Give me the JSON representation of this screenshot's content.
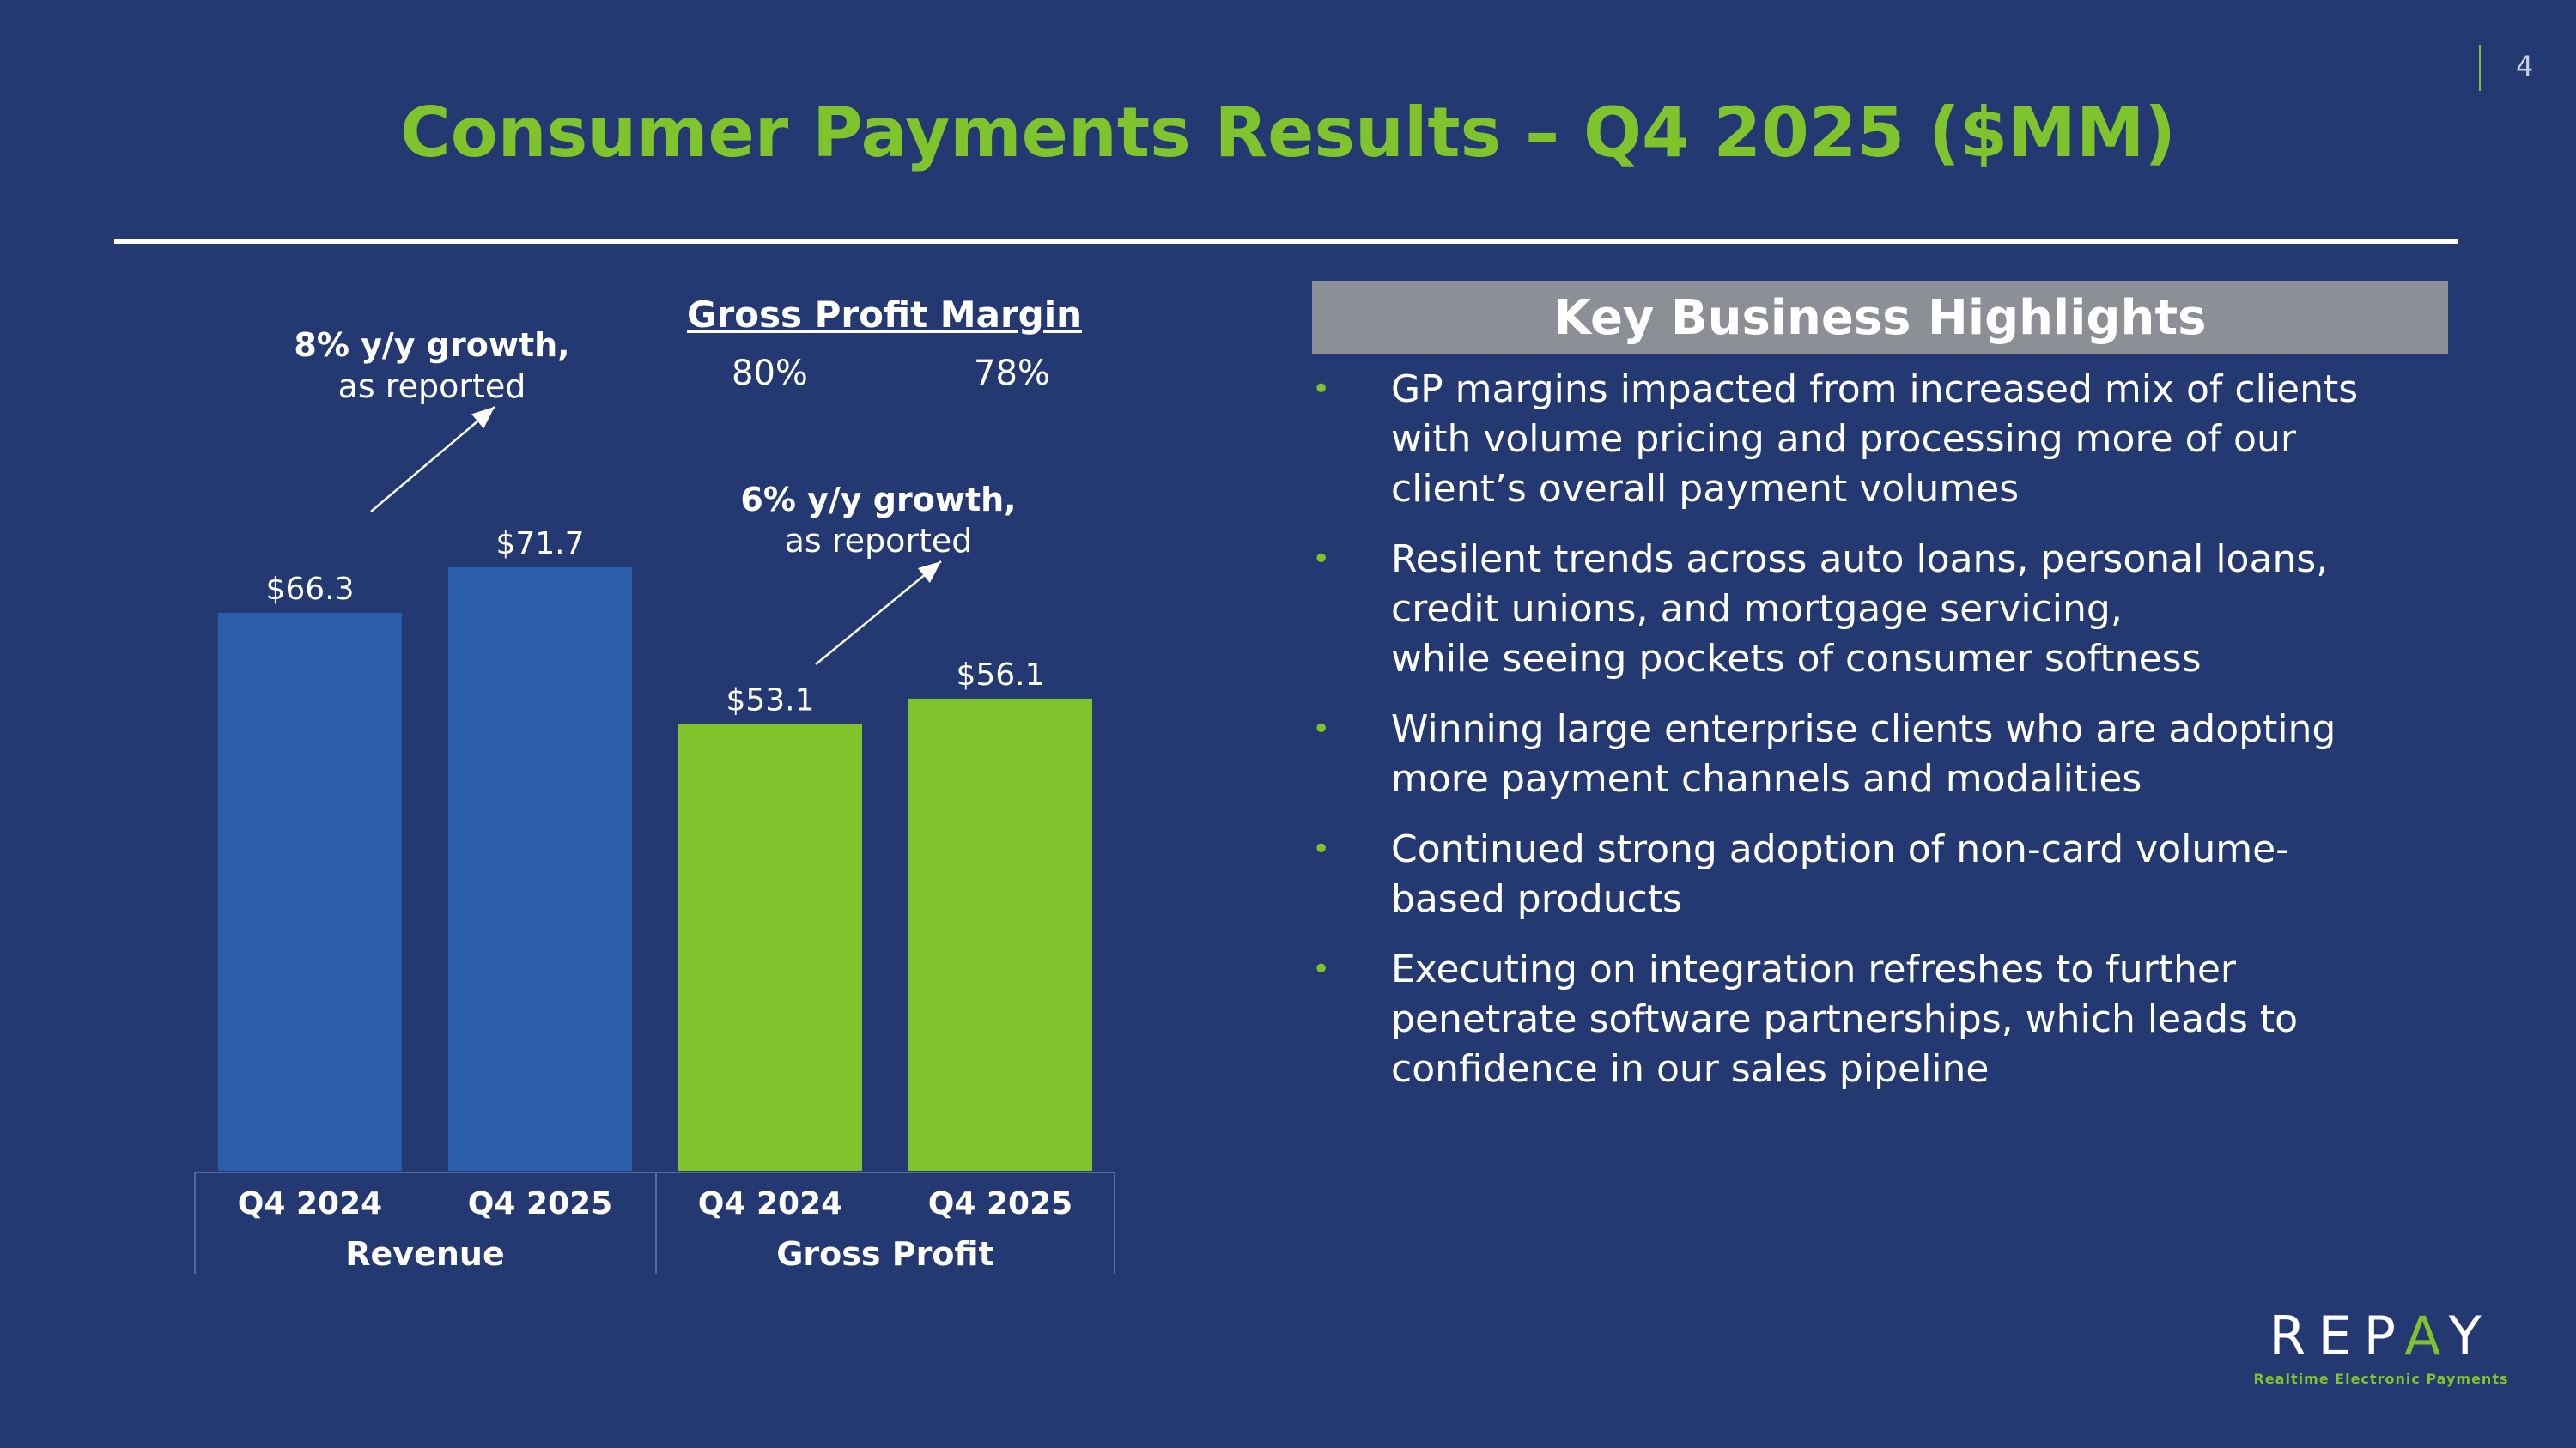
{
  "page_number": "4",
  "title": "Consumer Payments Results – Q4 2025 ($MM)",
  "colors": {
    "background": "#243872",
    "revenue": "#2a5ead",
    "gross_profit": "#7fc42d",
    "accent": "#7fc42d",
    "header_bar": "#8c8f96"
  },
  "gross_profit_margin": {
    "title": "Gross Profit Margin",
    "q4_2024": "80%",
    "q4_2025": "78%"
  },
  "annotations": {
    "revenue_growth": {
      "bold": "8% y/y growth,",
      "light": "as reported"
    },
    "gp_growth": {
      "bold": "6% y/y growth,",
      "light": "as reported"
    }
  },
  "chart_data": {
    "type": "bar",
    "groups": [
      "Revenue",
      "Gross Profit"
    ],
    "categories": [
      "Q4 2024",
      "Q4 2025"
    ],
    "series": [
      {
        "name": "Revenue",
        "values": [
          66.3,
          71.7
        ],
        "labels": [
          "$66.3",
          "$71.7"
        ],
        "color": "#2a5ead"
      },
      {
        "name": "Gross Profit",
        "values": [
          53.1,
          56.1
        ],
        "labels": [
          "$53.1",
          "$56.1"
        ],
        "color": "#7fc42d"
      }
    ],
    "ylim": [
      0,
      80
    ],
    "grid": false
  },
  "highlights": {
    "header": "Key Business Highlights",
    "bullets": [
      "GP margins impacted from increased mix of clients\nwith volume pricing and processing more of our\nclient’s overall payment volumes",
      "Resilent trends across auto loans, personal loans,\ncredit unions, and mortgage servicing,\nwhile seeing pockets of consumer softness",
      "Winning large enterprise clients who are adopting\nmore payment channels and modalities",
      "Continued strong adoption of non-card volume-\nbased products",
      "Executing on integration refreshes to further\npenetrate software partnerships, which leads to\nconfidence in our sales pipeline"
    ],
    "bullet_glyph": "•"
  },
  "logo": {
    "word_left": "REP",
    "word_accent": "A",
    "word_right": "Y",
    "tagline": "Realtime Electronic Payments"
  }
}
